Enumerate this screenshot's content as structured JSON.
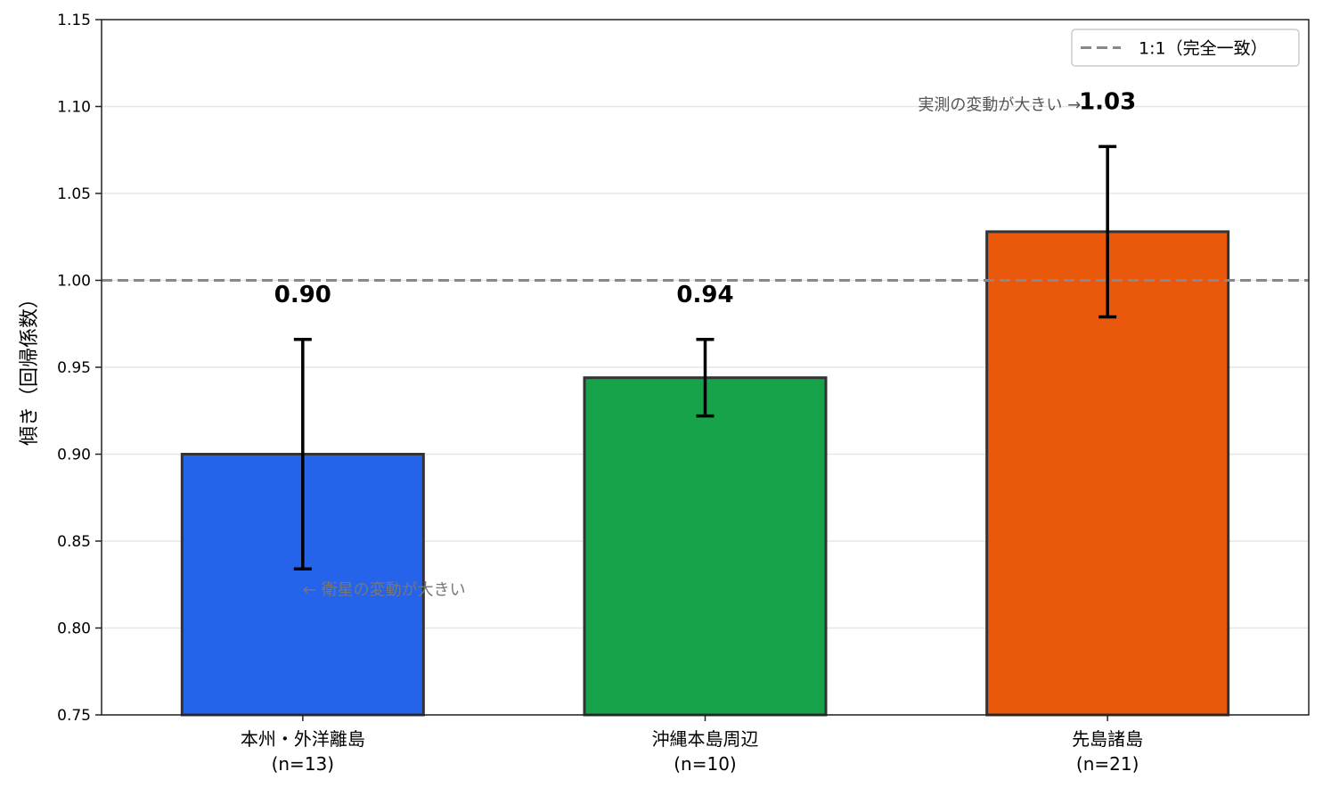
{
  "chart_data": {
    "type": "bar",
    "title": "",
    "xlabel": "",
    "ylabel": "傾き（回帰係数）",
    "categories": [
      [
        "本州・外洋離島",
        "(n=13)"
      ],
      [
        "沖縄本島周辺",
        "(n=10)"
      ],
      [
        "先島諸島",
        "(n=21)"
      ]
    ],
    "values": [
      0.9,
      0.944,
      1.028
    ],
    "error_low": [
      0.834,
      0.922,
      0.979
    ],
    "error_high": [
      0.966,
      0.966,
      1.077
    ],
    "value_labels": [
      "0.90",
      "0.94",
      "1.03"
    ],
    "colors": [
      "#2563eb",
      "#16a34a",
      "#ea580c"
    ],
    "edge_color": "#333333",
    "ylim": [
      0.75,
      1.15
    ],
    "yticks": [
      0.75,
      0.8,
      0.85,
      0.9,
      0.95,
      1.0,
      1.05,
      1.1,
      1.15
    ],
    "ytick_labels": [
      "0.75",
      "0.80",
      "0.85",
      "0.90",
      "0.95",
      "1.00",
      "1.05",
      "1.10",
      "1.15"
    ],
    "grid": "horizontal",
    "reference_line": {
      "y": 1.0,
      "label": "1:1（完全一致）",
      "color": "#888888",
      "style": "dashed"
    },
    "legend": {
      "placement": "top-right"
    },
    "annotations": [
      {
        "text": "← 衛星の変動が大きい",
        "x": 0,
        "y": 0.822,
        "color": "#777777"
      },
      {
        "text": "実測の変動が大きい →",
        "x": 2,
        "y": 1.101,
        "color": "#555555"
      }
    ]
  }
}
